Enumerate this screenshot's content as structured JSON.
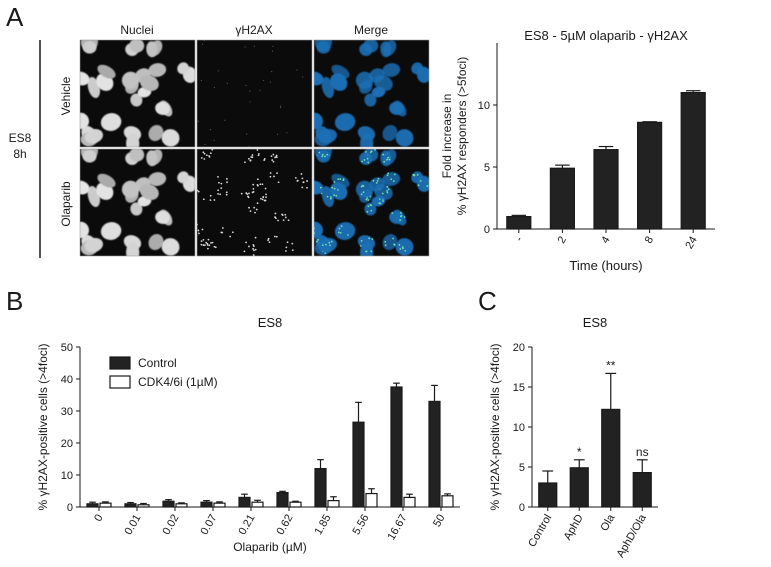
{
  "panel_a": {
    "letter": "A",
    "column_headers": [
      "Nuclei",
      "γH2AX",
      "Merge"
    ],
    "condition": [
      "ES8",
      "8h"
    ],
    "row_labels": [
      "Vehicle",
      "Olaparib"
    ],
    "colors": {
      "nuclei": "#cfcfcf",
      "merge": "#1e6fb6",
      "foci": "#6fe0b0",
      "background": "#0b0b0b"
    }
  },
  "panel_b": {
    "letter": "B"
  },
  "panel_c": {
    "letter": "C"
  },
  "chart_data": [
    {
      "id": "A-bar",
      "type": "bar",
      "title": "ES8 - 5µM olaparib - γH2AX",
      "xlabel": "Time (hours)",
      "ylabel_lines": [
        "Fold increase in",
        "% γH2AX responders (>5foci)"
      ],
      "categories": [
        "-",
        "2",
        "4",
        "8",
        "24"
      ],
      "values": [
        1.0,
        4.9,
        6.4,
        8.6,
        11.0
      ],
      "errors": [
        0.1,
        0.25,
        0.25,
        0.05,
        0.15
      ],
      "ylim": [
        0,
        15
      ],
      "yticks": [
        0,
        5,
        10
      ],
      "color": "#222222"
    },
    {
      "id": "B-bar",
      "type": "bar",
      "title": "ES8",
      "xlabel": "Olaparib (µM)",
      "ylabel": "% γH2AX-positive cells (>4foci)",
      "categories": [
        "0",
        "0.01",
        "0.02",
        "0.07",
        "0.21",
        "0.62",
        "1.85",
        "5.56",
        "16.67",
        "50"
      ],
      "series": [
        {
          "name": "Control",
          "values": [
            1.0,
            1.0,
            1.8,
            1.5,
            3.0,
            4.5,
            12.0,
            26.5,
            37.5,
            33.0
          ],
          "errors": [
            0.5,
            0.4,
            0.5,
            0.5,
            1.0,
            0.4,
            2.8,
            6.2,
            1.2,
            5.0
          ],
          "color": "#222222"
        },
        {
          "name": "CDK4/6i (1µM)",
          "values": [
            1.2,
            0.7,
            1.0,
            1.2,
            1.5,
            1.5,
            2.0,
            4.2,
            3.0,
            3.5
          ],
          "errors": [
            0.4,
            0.4,
            0.3,
            0.4,
            0.6,
            0.3,
            1.2,
            1.5,
            1.0,
            0.6
          ],
          "color": "#ffffff"
        }
      ],
      "ylim": [
        0,
        50
      ],
      "yticks": [
        0,
        10,
        20,
        30,
        40,
        50
      ],
      "legend_position": "top-left"
    },
    {
      "id": "C-bar",
      "type": "bar",
      "title": "ES8",
      "ylabel": "% γH2AX-positive cells (>4foci)",
      "categories": [
        "Control",
        "AphD",
        "Ola",
        "AphD/Ola"
      ],
      "values": [
        3.0,
        4.9,
        12.2,
        4.3
      ],
      "errors": [
        1.5,
        1.0,
        4.5,
        1.6
      ],
      "annotations": [
        "",
        "*",
        "**",
        "ns"
      ],
      "ylim": [
        0,
        20
      ],
      "yticks": [
        0,
        5,
        10,
        15,
        20
      ],
      "color": "#222222"
    }
  ]
}
